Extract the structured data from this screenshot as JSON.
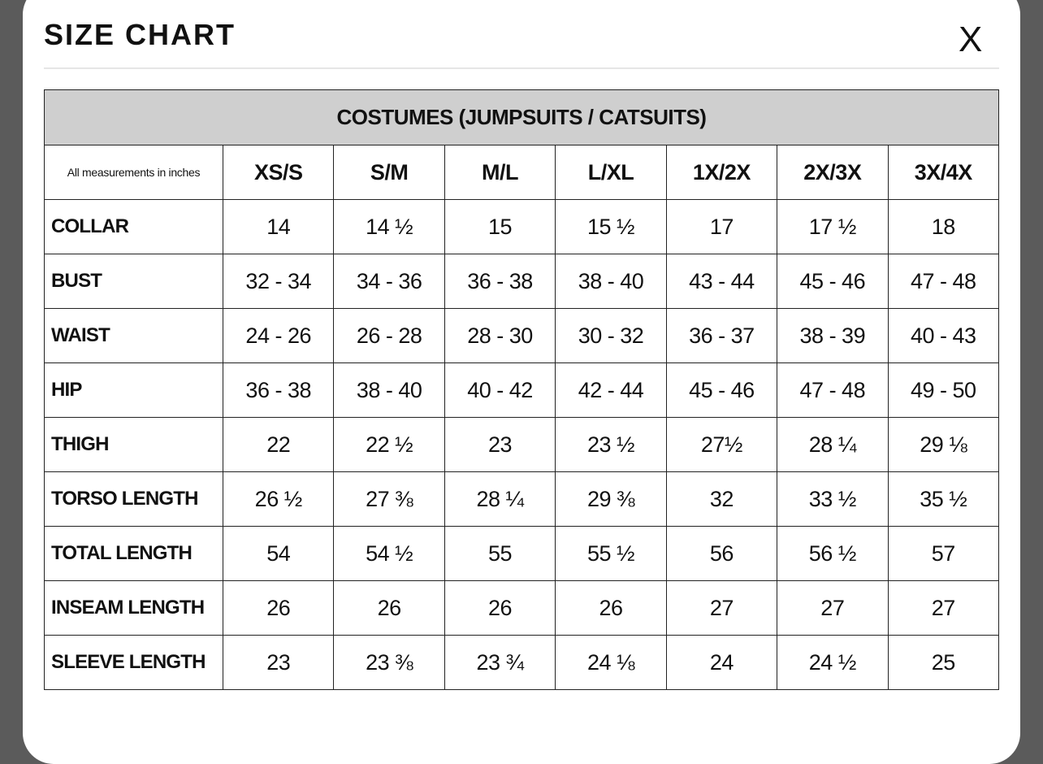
{
  "header": {
    "title": "SIZE CHART",
    "close": "X"
  },
  "table": {
    "caption": "COSTUMES (JUMPSUITS / CATSUITS)",
    "note": "All measurements in inches",
    "columns": [
      "XS/S",
      "S/M",
      "M/L",
      "L/XL",
      "1X/2X",
      "2X/3X",
      "3X/4X"
    ],
    "rows": [
      [
        "COLLAR",
        "14",
        "14 ½",
        "15",
        "15 ½",
        "17",
        "17 ½",
        "18"
      ],
      [
        "BUST",
        "32 - 34",
        "34 - 36",
        "36 - 38",
        "38 - 40",
        "43 - 44",
        "45 - 46",
        "47 - 48"
      ],
      [
        "WAIST",
        "24 - 26",
        "26 - 28",
        "28 - 30",
        "30 - 32",
        "36 - 37",
        "38 - 39",
        "40 - 43"
      ],
      [
        "HIP",
        "36 - 38",
        "38 - 40",
        "40 - 42",
        "42 - 44",
        "45 - 46",
        "47 - 48",
        "49 - 50"
      ],
      [
        "THIGH",
        "22",
        "22 ½",
        "23",
        "23 ½",
        "27½",
        "28 ¼",
        "29 ⅛"
      ],
      [
        "TORSO LENGTH",
        "26 ½",
        "27 ⅜",
        "28 ¼",
        "29 ⅜",
        "32",
        "33 ½",
        "35 ½"
      ],
      [
        "TOTAL LENGTH",
        "54",
        "54 ½",
        "55",
        "55 ½",
        "56",
        "56 ½",
        "57"
      ],
      [
        "INSEAM LENGTH",
        "26",
        "26",
        "26",
        "26",
        "27",
        "27",
        "27"
      ],
      [
        "SLEEVE LENGTH",
        "23",
        "23 ⅜",
        "23 ¾",
        "24 ⅛",
        "24",
        "24 ½",
        "25"
      ]
    ]
  }
}
